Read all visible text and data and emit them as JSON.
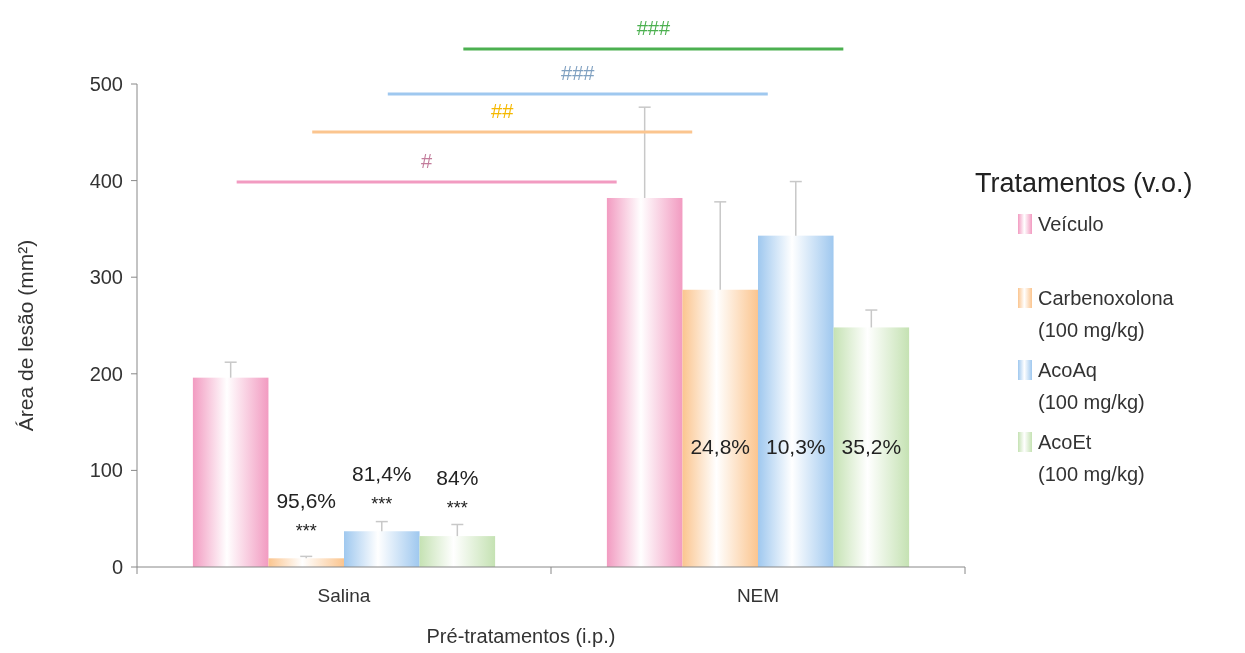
{
  "chart_data": {
    "type": "bar",
    "xlabel": "Pré-tratamentos (i.p.)",
    "ylabel": "Área de lesão (mm²)",
    "legend_title": "Tratamentos (v.o.)",
    "categories": [
      "Salina",
      "NEM"
    ],
    "series": [
      {
        "name": "Veículo",
        "color": "#f29bc1",
        "values": [
          196,
          382
        ],
        "errors": [
          [
            196,
            212
          ],
          [
            382,
            476
          ]
        ]
      },
      {
        "name": "Carbenoxolona (100 mg/kg)",
        "color": "#fbc58f",
        "values": [
          9,
          287
        ],
        "errors": [
          [
            9,
            11
          ],
          [
            287,
            378
          ]
        ]
      },
      {
        "name": "AcoAq (100 mg/kg)",
        "color": "#9fc8ef",
        "values": [
          37,
          343
        ],
        "errors": [
          [
            37,
            47
          ],
          [
            343,
            399
          ]
        ]
      },
      {
        "name": "AcoEt (100 mg/kg)",
        "color": "#c5e2b3",
        "values": [
          32,
          248
        ],
        "errors": [
          [
            32,
            44
          ],
          [
            248,
            266
          ]
        ]
      }
    ],
    "annotations": [
      "#",
      "##",
      "###",
      "###",
      "95,6%",
      "***",
      "81,4%",
      "***",
      "84%",
      "***",
      "24,8%",
      "10,3%",
      "35,2%"
    ],
    "ylim": [
      0,
      500
    ],
    "yticks": [
      0,
      100,
      200,
      300,
      400,
      500
    ],
    "legend": "right",
    "grid": false
  }
}
